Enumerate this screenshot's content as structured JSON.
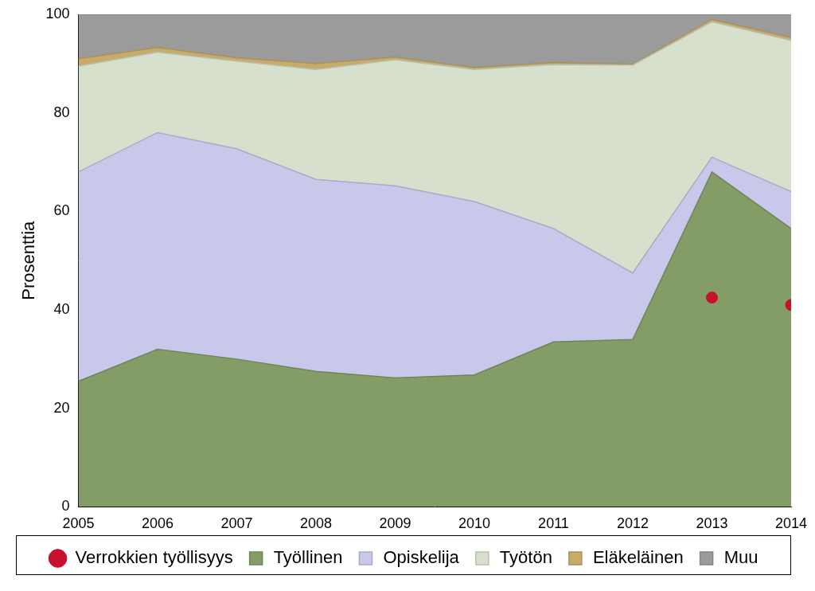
{
  "chart_data": {
    "type": "area",
    "ylabel": "Prosenttia",
    "x": [
      2005,
      2006,
      2007,
      2008,
      2009,
      2010,
      2011,
      2012,
      2013,
      2014
    ],
    "xlim": [
      2005,
      2014
    ],
    "xticks": [
      2005,
      2006,
      2007,
      2008,
      2009,
      2010,
      2011,
      2012,
      2013,
      2014
    ],
    "ylim": [
      0,
      100
    ],
    "yticks": [
      0,
      20,
      40,
      60,
      80,
      100
    ],
    "stacked": true,
    "grid": false,
    "legend": "bottom",
    "series": [
      {
        "name": "Työllinen",
        "color": "#849c66",
        "values": [
          25.5,
          32,
          30,
          27.5,
          26.2,
          26.8,
          33.5,
          34,
          68,
          56.5
        ]
      },
      {
        "name": "Opiskelija",
        "color": "#c9c8ea",
        "values": [
          42.5,
          44,
          42.7,
          39,
          39,
          35.2,
          23,
          13.5,
          3,
          7.5
        ]
      },
      {
        "name": "Työtön",
        "color": "#d6e0cc",
        "values": [
          21.5,
          16.3,
          17.8,
          22.3,
          25.6,
          26.8,
          33.3,
          42.2,
          27.5,
          30.7
        ]
      },
      {
        "name": "Eläkeläinen",
        "color": "#c8aa6a",
        "values": [
          1.5,
          1,
          0.7,
          1.2,
          0.5,
          0.4,
          0.4,
          0.2,
          0.5,
          0.6
        ]
      },
      {
        "name": "Muu",
        "color": "#9b9b9b",
        "values": [
          9,
          6.7,
          8.8,
          10,
          8.7,
          10.8,
          9.8,
          10.1,
          1,
          4.7
        ]
      },
      {
        "name": "Verrokkien työllisyys",
        "color": "#c8102e",
        "type": "scatter",
        "marker": "circle",
        "values": [
          null,
          null,
          null,
          null,
          null,
          null,
          null,
          null,
          42.5,
          41
        ]
      }
    ]
  }
}
